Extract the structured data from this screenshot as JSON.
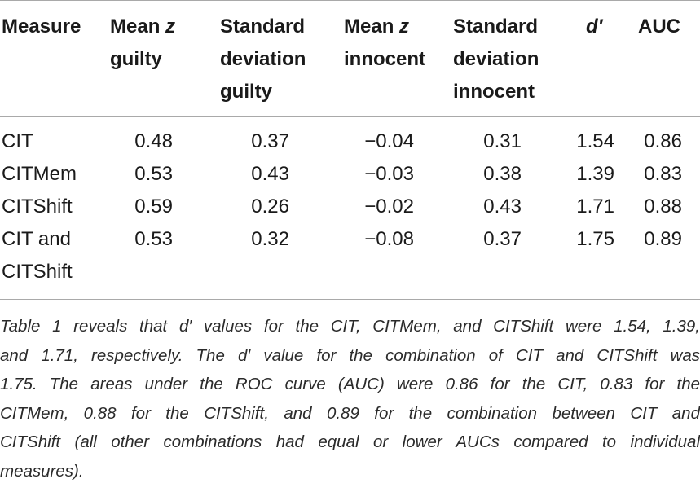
{
  "table": {
    "headers": {
      "measure": "Measure",
      "mean_z_guilty": [
        "Mean z",
        "guilty"
      ],
      "sd_guilty": [
        "Standard",
        "deviation",
        "guilty"
      ],
      "mean_z_innocent": [
        "Mean z",
        "innocent"
      ],
      "sd_innocent": [
        "Standard",
        "deviation",
        "innocent"
      ],
      "d_prime": "d′",
      "auc": "AUC"
    },
    "rows": [
      {
        "measure": [
          "CIT"
        ],
        "mean_z_guilty": "0.48",
        "sd_guilty": "0.37",
        "mean_z_innocent": "−0.04",
        "sd_innocent": "0.31",
        "d_prime": "1.54",
        "auc": "0.86"
      },
      {
        "measure": [
          "CITMem"
        ],
        "mean_z_guilty": "0.53",
        "sd_guilty": "0.43",
        "mean_z_innocent": "−0.03",
        "sd_innocent": "0.38",
        "d_prime": "1.39",
        "auc": "0.83"
      },
      {
        "measure": [
          "CITShift"
        ],
        "mean_z_guilty": "0.59",
        "sd_guilty": "0.26",
        "mean_z_innocent": "−0.02",
        "sd_innocent": "0.43",
        "d_prime": "1.71",
        "auc": "0.88"
      },
      {
        "measure": [
          "CIT and",
          "CITShift"
        ],
        "mean_z_guilty": "0.53",
        "sd_guilty": "0.32",
        "mean_z_innocent": "−0.08",
        "sd_innocent": "0.37",
        "d_prime": "1.75",
        "auc": "0.89"
      }
    ]
  },
  "caption": {
    "lines": [
      "Table 1 reveals that d′ values for the CIT, CITMem, and CITShift were 1.54, 1.39,",
      "and 1.71, respectively. The d′ value for the combination of CIT and CITShift was",
      "1.75. The areas under the ROC curve (AUC) were 0.86 for the CIT, 0.83 for the",
      "CITMem, 0.88 for the CITShift, and 0.89 for the combination between CIT and",
      "CITShift (all other combinations had equal or lower AUCs compared to individual",
      "measures)."
    ]
  }
}
